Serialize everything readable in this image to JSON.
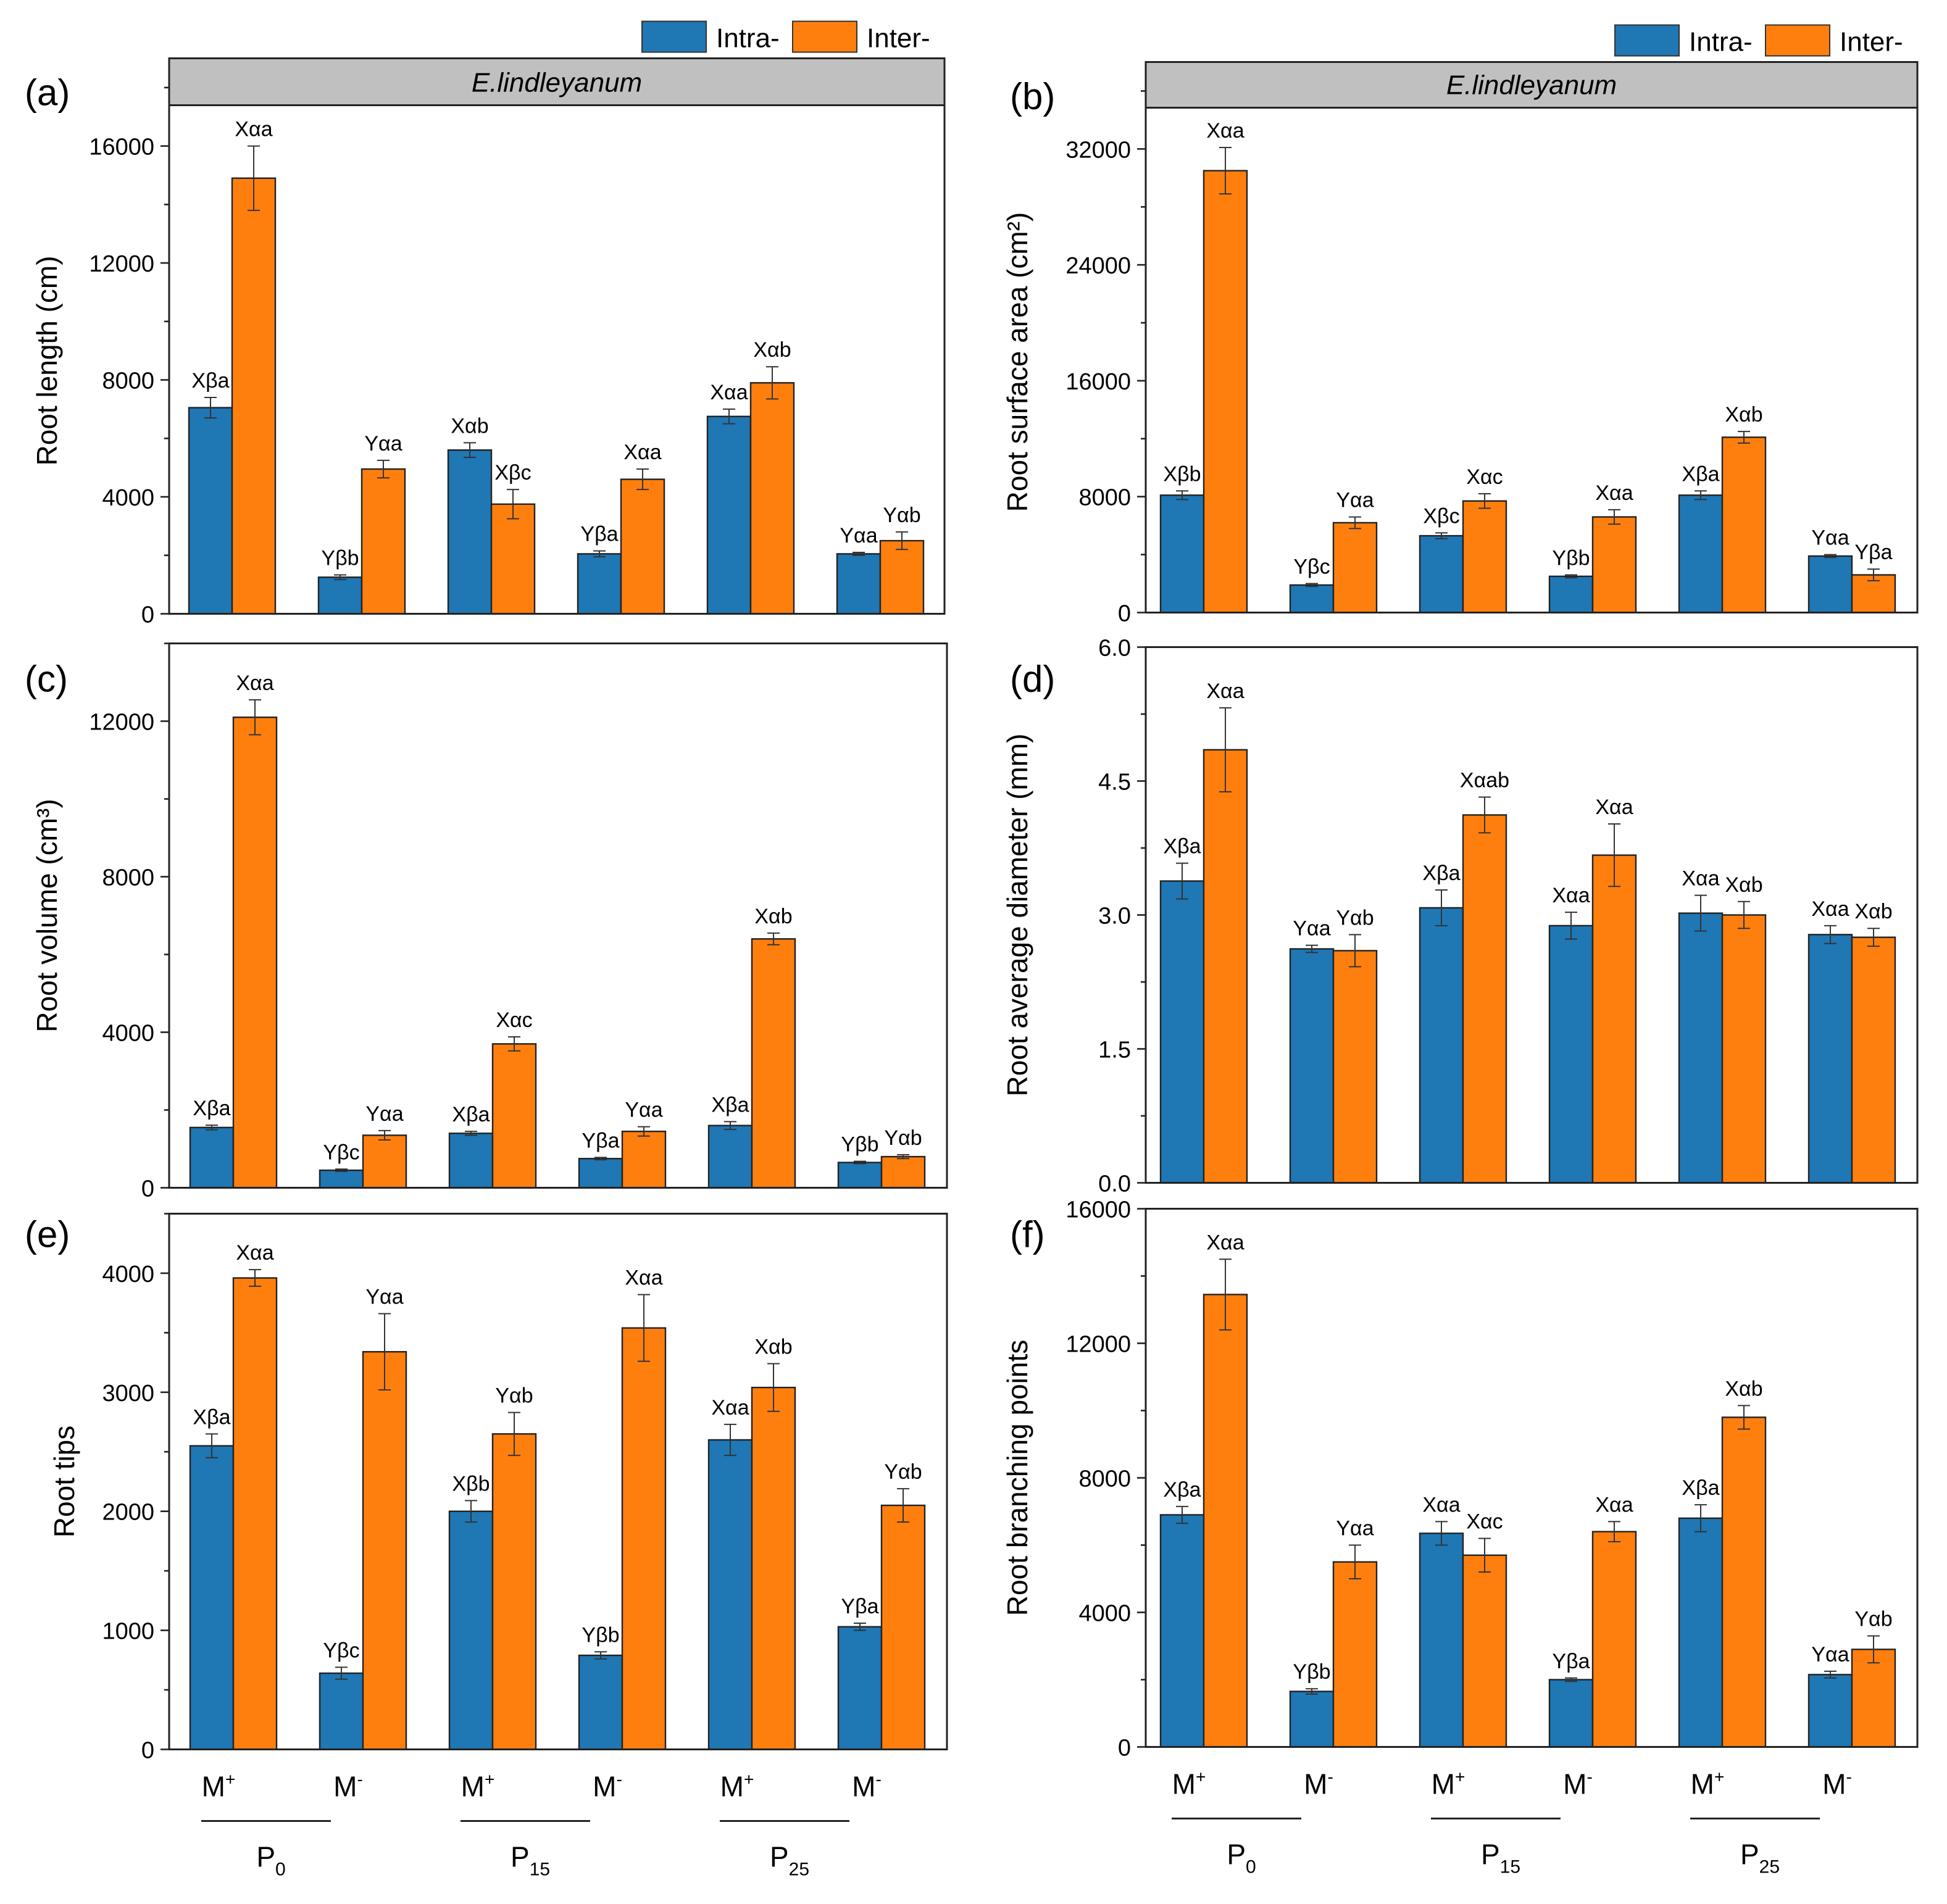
{
  "legend": {
    "intra": "Intra-",
    "inter": "Inter-"
  },
  "colors": {
    "intra": "#1f77b4",
    "inter": "#ff7f0e",
    "strip": "#c0c0c0"
  },
  "strip_title": "E.lindleyanum",
  "x_groups": {
    "m_labels": [
      "M",
      "M",
      "M",
      "M",
      "M",
      "M"
    ],
    "m_sup": [
      "+",
      "-",
      "+",
      "-",
      "+",
      "-"
    ],
    "p_labels": [
      "P",
      "P",
      "P"
    ],
    "p_sub": [
      "0",
      "15",
      "25"
    ]
  },
  "chart_data": [
    {
      "panel": "(a)",
      "type": "bar",
      "ylabel": "Root length (cm)",
      "ylim": [
        0,
        19000
      ],
      "yticks": [
        0,
        4000,
        8000,
        12000,
        16000
      ],
      "strip": true,
      "categories": [
        "P0 M+",
        "P0 M-",
        "P15 M+",
        "P15 M-",
        "P25 M+",
        "P25 M-"
      ],
      "series": [
        {
          "name": "Intra-",
          "values": [
            7050,
            1250,
            5600,
            2050,
            6750,
            2050
          ],
          "errors": [
            350,
            80,
            250,
            100,
            250,
            50
          ],
          "labels": [
            "Xβa",
            "Yβb",
            "Xαb",
            "Yβa",
            "Xαa",
            "Yαa"
          ]
        },
        {
          "name": "Inter-",
          "values": [
            14900,
            4950,
            3750,
            4600,
            7900,
            2500
          ],
          "errors": [
            1100,
            300,
            500,
            350,
            550,
            300
          ],
          "labels": [
            "Xαa",
            "Yαa",
            "Xβc",
            "Xαa",
            "Xαb",
            "Yαb"
          ]
        }
      ]
    },
    {
      "panel": "(b)",
      "type": "bar",
      "ylabel": "Root surface area (cm²)",
      "ylim": [
        0,
        38000
      ],
      "yticks": [
        0,
        8000,
        16000,
        24000,
        32000
      ],
      "strip": true,
      "categories": [
        "P0 M+",
        "P0 M-",
        "P15 M+",
        "P15 M-",
        "P25 M+",
        "P25 M-"
      ],
      "series": [
        {
          "name": "Intra-",
          "values": [
            8100,
            1900,
            5300,
            2500,
            8100,
            3900
          ],
          "errors": [
            300,
            100,
            200,
            100,
            300,
            100
          ],
          "labels": [
            "Xβb",
            "Yβc",
            "Xβc",
            "Yβb",
            "Xβa",
            "Yαa"
          ]
        },
        {
          "name": "Inter-",
          "values": [
            30500,
            6200,
            7700,
            6600,
            12100,
            2600
          ],
          "errors": [
            1600,
            400,
            500,
            500,
            400,
            400
          ],
          "labels": [
            "Xαa",
            "Yαa",
            "Xαc",
            "Xαa",
            "Xαb",
            "Yβa"
          ]
        }
      ]
    },
    {
      "panel": "(c)",
      "type": "bar",
      "ylabel": "Root volume (cm³)",
      "ylim": [
        0,
        14000
      ],
      "yticks": [
        0,
        4000,
        8000,
        12000
      ],
      "strip": false,
      "categories": [
        "P0 M+",
        "P0 M-",
        "P15 M+",
        "P15 M-",
        "P25 M+",
        "P25 M-"
      ],
      "series": [
        {
          "name": "Intra-",
          "values": [
            1550,
            450,
            1400,
            750,
            1600,
            650
          ],
          "errors": [
            60,
            30,
            50,
            30,
            100,
            30
          ],
          "labels": [
            "Xβa",
            "Yβc",
            "Xβa",
            "Yβa",
            "Xβa",
            "Yβb"
          ]
        },
        {
          "name": "Inter-",
          "values": [
            12100,
            1350,
            3700,
            1450,
            6400,
            800
          ],
          "errors": [
            450,
            120,
            180,
            120,
            150,
            50
          ],
          "labels": [
            "Xαa",
            "Yαa",
            "Xαc",
            "Yαa",
            "Xαb",
            "Yαb"
          ]
        }
      ]
    },
    {
      "panel": "(d)",
      "type": "bar",
      "ylabel": "Root average diameter (mm)",
      "ylim": [
        0,
        6
      ],
      "yticks": [
        0.0,
        1.5,
        3.0,
        4.5,
        6.0
      ],
      "tick_decimals": 1,
      "strip": false,
      "categories": [
        "P0 M+",
        "P0 M-",
        "P15 M+",
        "P15 M-",
        "P25 M+",
        "P25 M-"
      ],
      "series": [
        {
          "name": "Intra-",
          "values": [
            3.38,
            2.62,
            3.08,
            2.88,
            3.02,
            2.78
          ],
          "errors": [
            0.2,
            0.04,
            0.2,
            0.15,
            0.2,
            0.1
          ],
          "labels": [
            "Xβa",
            "Yαa",
            "Xβa",
            "Xαa",
            "Xαa",
            "Xαa"
          ]
        },
        {
          "name": "Inter-",
          "values": [
            4.85,
            2.6,
            4.12,
            3.67,
            3.0,
            2.75
          ],
          "errors": [
            0.47,
            0.18,
            0.2,
            0.35,
            0.15,
            0.1
          ],
          "labels": [
            "Xαa",
            "Yαb",
            "Xαab",
            "Xαa",
            "Xαb",
            "Xαb"
          ]
        }
      ]
    },
    {
      "panel": "(e)",
      "type": "bar",
      "ylabel": "Root tips",
      "ylim": [
        0,
        4500
      ],
      "yticks": [
        0,
        1000,
        2000,
        3000,
        4000
      ],
      "strip": false,
      "categories": [
        "P0 M+",
        "P0 M-",
        "P15 M+",
        "P15 M-",
        "P25 M+",
        "P25 M-"
      ],
      "series": [
        {
          "name": "Intra-",
          "values": [
            2550,
            640,
            2000,
            790,
            2600,
            1030
          ],
          "errors": [
            100,
            50,
            90,
            30,
            130,
            30
          ],
          "labels": [
            "Xβa",
            "Yβc",
            "Xβb",
            "Yβb",
            "Xαa",
            "Yβa"
          ]
        },
        {
          "name": "Inter-",
          "values": [
            3960,
            3340,
            2650,
            3540,
            3040,
            2050
          ],
          "errors": [
            70,
            320,
            180,
            280,
            200,
            140
          ],
          "labels": [
            "Xαa",
            "Yαa",
            "Yαb",
            "Xαa",
            "Xαb",
            "Yαb"
          ]
        }
      ]
    },
    {
      "panel": "(f)",
      "type": "bar",
      "ylabel": "Root branching points",
      "ylim": [
        0,
        16000
      ],
      "yticks": [
        0,
        4000,
        8000,
        12000,
        16000
      ],
      "strip": false,
      "categories": [
        "P0 M+",
        "P0 M-",
        "P15 M+",
        "P15 M-",
        "P25 M+",
        "P25 M-"
      ],
      "series": [
        {
          "name": "Intra-",
          "values": [
            6900,
            1650,
            6350,
            2000,
            6800,
            2150
          ],
          "errors": [
            250,
            80,
            350,
            50,
            400,
            100
          ],
          "labels": [
            "Xβa",
            "Yβb",
            "Xαa",
            "Yβa",
            "Xβa",
            "Yαa"
          ]
        },
        {
          "name": "Inter-",
          "values": [
            13450,
            5500,
            5700,
            6400,
            9800,
            2900
          ],
          "errors": [
            1050,
            500,
            500,
            300,
            350,
            400
          ],
          "labels": [
            "Xαa",
            "Yαa",
            "Xαc",
            "Xαa",
            "Xαb",
            "Yαb"
          ]
        }
      ]
    }
  ]
}
